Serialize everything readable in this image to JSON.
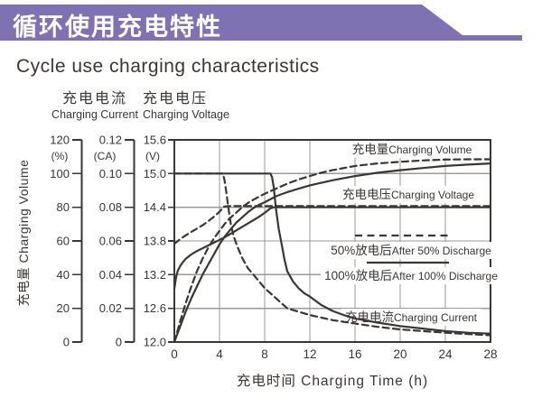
{
  "header": {
    "banner_title": "循环使用充电特性",
    "subtitle": "Cycle use charging characteristics",
    "banner_color": "#7E72B2"
  },
  "chart_data": {
    "type": "line",
    "title": "Cycle use charging characteristics",
    "x_axis": {
      "label": "充电时间 Charging Time (h)",
      "min": 0,
      "max": 28,
      "ticks": [
        0,
        4,
        8,
        12,
        16,
        20,
        24,
        28
      ],
      "grid": true
    },
    "y_axes": [
      {
        "id": "volume",
        "label_cn": "充电量",
        "label_en": "Charging Volume",
        "unit": "(%)",
        "min": 0,
        "max": 120,
        "ticks": [
          "120",
          "100",
          "80",
          "60",
          "40",
          "20",
          "0"
        ]
      },
      {
        "id": "current",
        "label_cn": "充电电流",
        "label_en": "Charging Current",
        "unit": "(CA)",
        "min": 0,
        "max": 0.12,
        "ticks": [
          "0.12",
          "0.10",
          "0.08",
          "0.06",
          "0.04",
          "0.02",
          "0"
        ]
      },
      {
        "id": "voltage",
        "label_cn": "充电电压",
        "label_en": "Charging Voltage",
        "unit": "(V)",
        "min": 12,
        "max": 15.6,
        "ticks": [
          "15.6",
          "15.0",
          "14.4",
          "13.8",
          "13.2",
          "12.6",
          "12.0"
        ]
      }
    ],
    "legend": [
      {
        "style": "dashed",
        "label_cn": "50%放电后",
        "label_en": "After 50% Discharge"
      },
      {
        "style": "solid",
        "label_cn": "100%放电后",
        "label_en": "After 100% Discharge"
      }
    ],
    "curve_labels": [
      {
        "id": "volume",
        "cn": "充电量",
        "en": "Charging Volume"
      },
      {
        "id": "voltage",
        "cn": "充电电压",
        "en": "Charging Voltage"
      },
      {
        "id": "current",
        "cn": "充电电流",
        "en": "Charging Current"
      }
    ],
    "series": [
      {
        "name": "charging-voltage-after-100-discharge",
        "axis": "voltage",
        "style": "solid",
        "points": [
          [
            0,
            12.95
          ],
          [
            0.15,
            13.15
          ],
          [
            0.3,
            13.27
          ],
          [
            0.5,
            13.35
          ],
          [
            0.75,
            13.42
          ],
          [
            1,
            13.48
          ],
          [
            1.5,
            13.56
          ],
          [
            2,
            13.62
          ],
          [
            2.5,
            13.67
          ],
          [
            3,
            13.72
          ],
          [
            3.5,
            13.77
          ],
          [
            4,
            13.82
          ],
          [
            4.5,
            13.87
          ],
          [
            5,
            13.93
          ],
          [
            5.5,
            13.99
          ],
          [
            6,
            14.05
          ],
          [
            6.5,
            14.11
          ],
          [
            7,
            14.17
          ],
          [
            7.5,
            14.23
          ],
          [
            8,
            14.3
          ],
          [
            8.5,
            14.38
          ],
          [
            8.8,
            14.4
          ],
          [
            28,
            14.4
          ]
        ]
      },
      {
        "name": "charging-voltage-after-50-discharge",
        "axis": "voltage",
        "style": "dashed",
        "points": [
          [
            0,
            13.75
          ],
          [
            0.5,
            13.83
          ],
          [
            1,
            13.9
          ],
          [
            1.5,
            13.96
          ],
          [
            2,
            14.02
          ],
          [
            2.5,
            14.08
          ],
          [
            3,
            14.15
          ],
          [
            3.5,
            14.23
          ],
          [
            4,
            14.32
          ],
          [
            4.4,
            14.41
          ],
          [
            4.8,
            14.42
          ],
          [
            28,
            14.42
          ]
        ]
      },
      {
        "name": "charging-current-after-100-discharge",
        "axis": "current",
        "style": "solid",
        "points": [
          [
            0,
            0.1
          ],
          [
            8.5,
            0.1
          ],
          [
            8.65,
            0.098
          ],
          [
            8.8,
            0.092
          ],
          [
            9,
            0.079
          ],
          [
            9.25,
            0.067
          ],
          [
            9.5,
            0.058
          ],
          [
            9.75,
            0.049
          ],
          [
            10,
            0.042
          ],
          [
            10.5,
            0.036
          ],
          [
            11,
            0.032
          ],
          [
            11.5,
            0.029
          ],
          [
            12,
            0.027
          ],
          [
            13,
            0.022
          ],
          [
            14,
            0.0185
          ],
          [
            15,
            0.016
          ],
          [
            16,
            0.014
          ],
          [
            18,
            0.0115
          ],
          [
            20,
            0.0095
          ],
          [
            22,
            0.008
          ],
          [
            24,
            0.0065
          ],
          [
            26,
            0.0055
          ],
          [
            28,
            0.005
          ]
        ]
      },
      {
        "name": "charging-current-after-50-discharge",
        "axis": "current",
        "style": "dashed",
        "points": [
          [
            0,
            0.1
          ],
          [
            4.3,
            0.1
          ],
          [
            4.45,
            0.096
          ],
          [
            4.6,
            0.089
          ],
          [
            4.8,
            0.079
          ],
          [
            5,
            0.07
          ],
          [
            5.25,
            0.063
          ],
          [
            5.5,
            0.058
          ],
          [
            6,
            0.05
          ],
          [
            6.5,
            0.044
          ],
          [
            7,
            0.04
          ],
          [
            7.5,
            0.036
          ],
          [
            8,
            0.032
          ],
          [
            8.5,
            0.029
          ],
          [
            9,
            0.026
          ],
          [
            9.5,
            0.023
          ],
          [
            10,
            0.02
          ],
          [
            11,
            0.018
          ],
          [
            12,
            0.016
          ],
          [
            13,
            0.0145
          ],
          [
            14,
            0.013
          ],
          [
            16,
            0.011
          ],
          [
            18,
            0.009
          ],
          [
            20,
            0.0075
          ],
          [
            22,
            0.0065
          ],
          [
            24,
            0.0055
          ],
          [
            26,
            0.0047
          ],
          [
            28,
            0.004
          ]
        ]
      },
      {
        "name": "charging-volume-after-100-discharge",
        "axis": "volume",
        "style": "solid",
        "points": [
          [
            0,
            0
          ],
          [
            0.5,
            9
          ],
          [
            1,
            18
          ],
          [
            1.5,
            26
          ],
          [
            2,
            33
          ],
          [
            2.5,
            40
          ],
          [
            3,
            46
          ],
          [
            3.5,
            52
          ],
          [
            4,
            58
          ],
          [
            4.5,
            63
          ],
          [
            5,
            67
          ],
          [
            5.5,
            71
          ],
          [
            6,
            74
          ],
          [
            6.5,
            77
          ],
          [
            7,
            79.5
          ],
          [
            7.5,
            81.5
          ],
          [
            8,
            83
          ],
          [
            9,
            86.5
          ],
          [
            10,
            89
          ],
          [
            11,
            91
          ],
          [
            12,
            93
          ],
          [
            13,
            94.5
          ],
          [
            14,
            96
          ],
          [
            16,
            98.5
          ],
          [
            18,
            100.5
          ],
          [
            20,
            102
          ],
          [
            22,
            103.3
          ],
          [
            24,
            104.5
          ],
          [
            26,
            105.3
          ],
          [
            28,
            106
          ]
        ]
      },
      {
        "name": "charging-volume-after-50-discharge",
        "axis": "volume",
        "style": "dashed",
        "points": [
          [
            0,
            0
          ],
          [
            0.5,
            12
          ],
          [
            1,
            23
          ],
          [
            1.5,
            33
          ],
          [
            2,
            42
          ],
          [
            2.5,
            49.5
          ],
          [
            3,
            56
          ],
          [
            3.5,
            61.5
          ],
          [
            4,
            66
          ],
          [
            4.5,
            70.5
          ],
          [
            5,
            74
          ],
          [
            5.5,
            77
          ],
          [
            6,
            80
          ],
          [
            6.5,
            82.5
          ],
          [
            7,
            84.5
          ],
          [
            8,
            88
          ],
          [
            9,
            91
          ],
          [
            10,
            94
          ],
          [
            11,
            96.5
          ],
          [
            12,
            98.5
          ],
          [
            13,
            100.5
          ],
          [
            14,
            102
          ],
          [
            16,
            104.5
          ],
          [
            18,
            106
          ],
          [
            20,
            107
          ],
          [
            22,
            107.8
          ],
          [
            24,
            108.3
          ],
          [
            26,
            108.5
          ],
          [
            28,
            108.5
          ]
        ]
      }
    ],
    "colors": {
      "ink": "#3A3633",
      "grid": "#999999"
    }
  }
}
